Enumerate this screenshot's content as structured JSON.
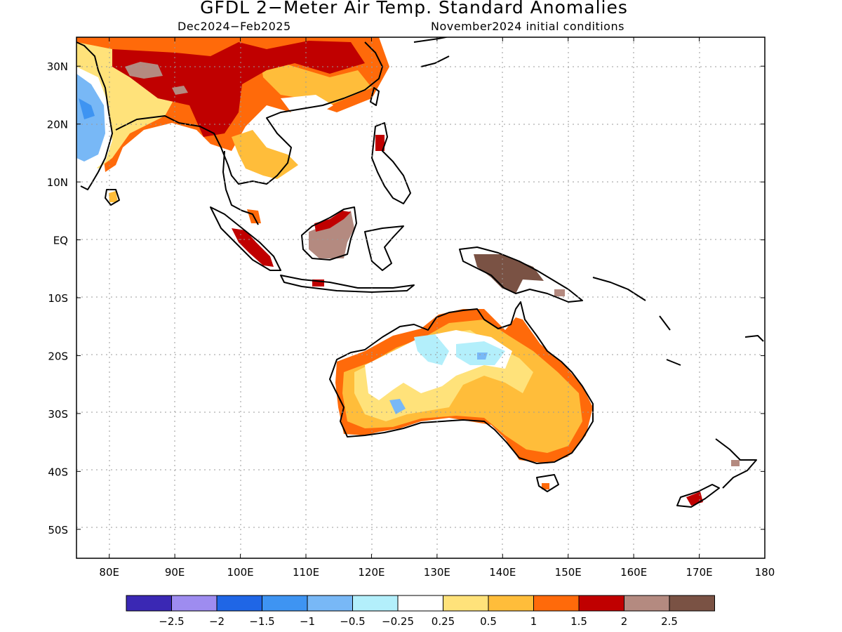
{
  "title": "GFDL 2−Meter Air Temp. Standard Anomalies",
  "period": "Dec2024−Feb2025",
  "initial_conditions": "November2024 initial conditions",
  "map": {
    "lon_range": [
      75,
      180
    ],
    "lat_range": [
      -55,
      35
    ],
    "lat_ticks": [
      {
        "value": 30,
        "label": "30N"
      },
      {
        "value": 20,
        "label": "20N"
      },
      {
        "value": 10,
        "label": "10N"
      },
      {
        "value": 0,
        "label": "EQ"
      },
      {
        "value": -10,
        "label": "10S"
      },
      {
        "value": -20,
        "label": "20S"
      },
      {
        "value": -30,
        "label": "30S"
      },
      {
        "value": -40,
        "label": "40S"
      },
      {
        "value": -50,
        "label": "50S"
      }
    ],
    "lon_ticks": [
      {
        "value": 80,
        "label": "80E"
      },
      {
        "value": 90,
        "label": "90E"
      },
      {
        "value": 100,
        "label": "100E"
      },
      {
        "value": 110,
        "label": "110E"
      },
      {
        "value": 120,
        "label": "120E"
      },
      {
        "value": 130,
        "label": "130E"
      },
      {
        "value": 140,
        "label": "140E"
      },
      {
        "value": 150,
        "label": "150E"
      },
      {
        "value": 160,
        "label": "160E"
      },
      {
        "value": 170,
        "label": "170E"
      },
      {
        "value": 180,
        "label": "180"
      }
    ]
  },
  "legend": {
    "colors": [
      "#3a28b4",
      "#9e8cf0",
      "#1f66e6",
      "#3e94f2",
      "#78b8f6",
      "#b3effb",
      "#ffffff",
      "#ffe27a",
      "#ffbd3a",
      "#ff6a0a",
      "#c00000",
      "#b48a80",
      "#7a5244"
    ],
    "labels": [
      "−2.5",
      "−2",
      "−1.5",
      "−1",
      "−0.5",
      "−0.25",
      "0.25",
      "0.5",
      "1",
      "1.5",
      "2",
      "2.5"
    ]
  },
  "anomaly_regions": [
    {
      "region": "South and central China, northern India",
      "value": 1.5,
      "color": "#ff6a0a"
    },
    {
      "region": "Tibet / Himalaya core",
      "value": 2,
      "color": "#c00000"
    },
    {
      "region": "Western Tibet",
      "value": 2.5,
      "color": "#b48a80"
    },
    {
      "region": "Indochina",
      "value": 0.5,
      "color": "#ffbd3a"
    },
    {
      "region": "Western India",
      "value": -1,
      "color": "#78b8f6"
    },
    {
      "region": "Sumatra",
      "value": 2,
      "color": "#c00000"
    },
    {
      "region": "Borneo",
      "value": 2.5,
      "color": "#b48a80"
    },
    {
      "region": "New Guinea",
      "value": 2.5,
      "color": "#7a5244"
    },
    {
      "region": "Southeast and southwest Australia",
      "value": 0.5,
      "color": "#ffbd3a"
    },
    {
      "region": "Northern Australia",
      "value": -0.25,
      "color": "#b3effb"
    },
    {
      "region": "Western interior Australia",
      "value": -0.5,
      "color": "#78b8f6"
    },
    {
      "region": "South Island New Zealand",
      "value": 2,
      "color": "#c00000"
    }
  ]
}
